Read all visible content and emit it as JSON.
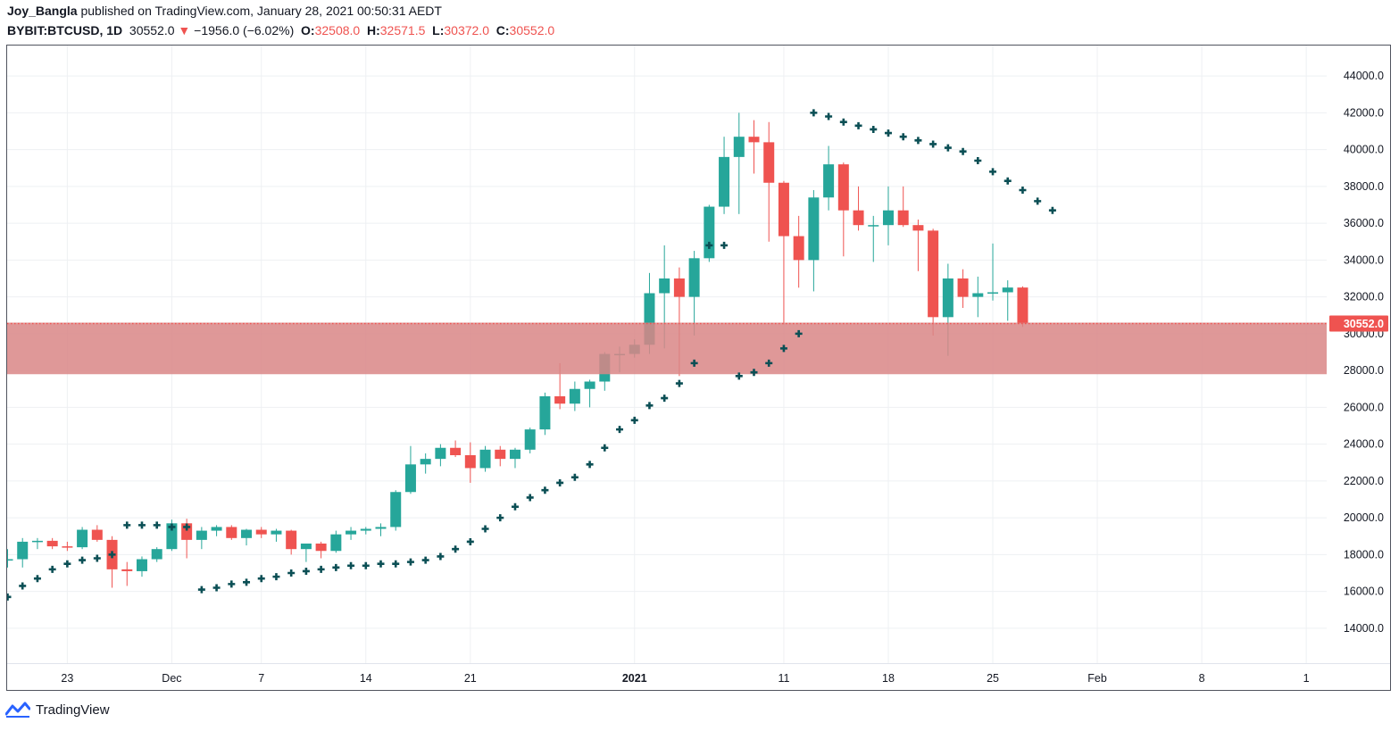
{
  "header": {
    "author": "Joy_Bangla",
    "published_text": "published on TradingView.com, January 28, 2021 00:50:31 AEDT",
    "symbol": "BYBIT:BTCUSD, 1D",
    "last": "30552.0",
    "change_arrow": "▼",
    "change": "−1956.0 (−6.02%)",
    "o_label": "O:",
    "o_value": "32508.0",
    "h_label": "H:",
    "h_value": "32571.5",
    "l_label": "L:",
    "l_value": "30372.0",
    "c_label": "C:",
    "c_value": "30552.0"
  },
  "footer": {
    "brand": "TradingView",
    "logo_icon": "tradingview-logo-icon"
  },
  "colors": {
    "up": "#26a69a",
    "down": "#ef5350",
    "sar": "#0b4f55",
    "zone": "#d98686",
    "grid": "#eef0f3",
    "axis_text": "#131722"
  },
  "chart_data": {
    "type": "candlestick",
    "ylim": [
      13000,
      45000
    ],
    "yticks": [
      14000,
      16000,
      18000,
      20000,
      22000,
      24000,
      26000,
      28000,
      30000,
      32000,
      34000,
      36000,
      38000,
      40000,
      42000,
      44000
    ],
    "ytick_labels": [
      "14000.0",
      "16000.0",
      "18000.0",
      "20000.0",
      "22000.0",
      "24000.0",
      "26000.0",
      "28000.0",
      "30000.0",
      "32000.0",
      "34000.0",
      "36000.0",
      "38000.0",
      "40000.0",
      "42000.0",
      "44000.0"
    ],
    "xticks": [
      {
        "index": 4,
        "label": "23",
        "bold": false
      },
      {
        "index": 11,
        "label": "Dec",
        "bold": false
      },
      {
        "index": 17,
        "label": "7",
        "bold": false
      },
      {
        "index": 24,
        "label": "14",
        "bold": false
      },
      {
        "index": 31,
        "label": "21",
        "bold": false
      },
      {
        "index": 42,
        "label": "2021",
        "bold": true
      },
      {
        "index": 52,
        "label": "11",
        "bold": false
      },
      {
        "index": 59,
        "label": "18",
        "bold": false
      },
      {
        "index": 66,
        "label": "25",
        "bold": false
      },
      {
        "index": 73,
        "label": "Feb",
        "bold": false
      },
      {
        "index": 80,
        "label": "8",
        "bold": false
      },
      {
        "index": 87,
        "label": "1",
        "bold": false
      }
    ],
    "last_price": 30552.0,
    "last_price_label": "30552.0",
    "zone": {
      "low": 27800,
      "high": 30600
    },
    "candles": [
      {
        "o": 17700,
        "h": 18300,
        "l": 17300,
        "c": 17750
      },
      {
        "o": 17750,
        "h": 18900,
        "l": 17300,
        "c": 18700
      },
      {
        "o": 18700,
        "h": 18900,
        "l": 18300,
        "c": 18750
      },
      {
        "o": 18750,
        "h": 18900,
        "l": 18300,
        "c": 18450
      },
      {
        "o": 18450,
        "h": 18700,
        "l": 18200,
        "c": 18400
      },
      {
        "o": 18400,
        "h": 19500,
        "l": 18300,
        "c": 19350
      },
      {
        "o": 19350,
        "h": 19600,
        "l": 18700,
        "c": 18800
      },
      {
        "o": 18800,
        "h": 19000,
        "l": 16200,
        "c": 17200
      },
      {
        "o": 17200,
        "h": 17600,
        "l": 16300,
        "c": 17100
      },
      {
        "o": 17100,
        "h": 17900,
        "l": 16800,
        "c": 17750
      },
      {
        "o": 17750,
        "h": 18400,
        "l": 17600,
        "c": 18300
      },
      {
        "o": 18300,
        "h": 19900,
        "l": 18200,
        "c": 19700
      },
      {
        "o": 19700,
        "h": 19950,
        "l": 17800,
        "c": 18800
      },
      {
        "o": 18800,
        "h": 19500,
        "l": 18300,
        "c": 19300
      },
      {
        "o": 19300,
        "h": 19600,
        "l": 19000,
        "c": 19500
      },
      {
        "o": 19500,
        "h": 19600,
        "l": 18800,
        "c": 18900
      },
      {
        "o": 18900,
        "h": 19400,
        "l": 18500,
        "c": 19350
      },
      {
        "o": 19350,
        "h": 19500,
        "l": 18900,
        "c": 19100
      },
      {
        "o": 19100,
        "h": 19400,
        "l": 18700,
        "c": 19300
      },
      {
        "o": 19300,
        "h": 19350,
        "l": 18000,
        "c": 18300
      },
      {
        "o": 18300,
        "h": 18600,
        "l": 17600,
        "c": 18600
      },
      {
        "o": 18600,
        "h": 18700,
        "l": 17800,
        "c": 18200
      },
      {
        "o": 18200,
        "h": 19300,
        "l": 18100,
        "c": 19100
      },
      {
        "o": 19100,
        "h": 19500,
        "l": 18800,
        "c": 19300
      },
      {
        "o": 19300,
        "h": 19500,
        "l": 19100,
        "c": 19400
      },
      {
        "o": 19400,
        "h": 19700,
        "l": 19000,
        "c": 19500
      },
      {
        "o": 19500,
        "h": 21500,
        "l": 19300,
        "c": 21400
      },
      {
        "o": 21400,
        "h": 23900,
        "l": 21300,
        "c": 22900
      },
      {
        "o": 22900,
        "h": 23500,
        "l": 22400,
        "c": 23200
      },
      {
        "o": 23200,
        "h": 24000,
        "l": 22800,
        "c": 23800
      },
      {
        "o": 23800,
        "h": 24200,
        "l": 23300,
        "c": 23400
      },
      {
        "o": 23400,
        "h": 24100,
        "l": 21900,
        "c": 22700
      },
      {
        "o": 22700,
        "h": 23900,
        "l": 22500,
        "c": 23700
      },
      {
        "o": 23700,
        "h": 23900,
        "l": 22800,
        "c": 23200
      },
      {
        "o": 23200,
        "h": 23800,
        "l": 22700,
        "c": 23700
      },
      {
        "o": 23700,
        "h": 24900,
        "l": 23500,
        "c": 24800
      },
      {
        "o": 24800,
        "h": 26800,
        "l": 24500,
        "c": 26600
      },
      {
        "o": 26600,
        "h": 28400,
        "l": 25900,
        "c": 26200
      },
      {
        "o": 26200,
        "h": 27400,
        "l": 25800,
        "c": 27000
      },
      {
        "o": 27000,
        "h": 27500,
        "l": 26000,
        "c": 27400
      },
      {
        "o": 27400,
        "h": 29000,
        "l": 26900,
        "c": 28900
      },
      {
        "o": 28900,
        "h": 29300,
        "l": 27900,
        "c": 28900
      },
      {
        "o": 28900,
        "h": 29700,
        "l": 28700,
        "c": 29400
      },
      {
        "o": 29400,
        "h": 33300,
        "l": 28900,
        "c": 32200
      },
      {
        "o": 32200,
        "h": 34800,
        "l": 29200,
        "c": 33000
      },
      {
        "o": 33000,
        "h": 33600,
        "l": 27700,
        "c": 32000
      },
      {
        "o": 32000,
        "h": 34500,
        "l": 29900,
        "c": 34100
      },
      {
        "o": 34100,
        "h": 37000,
        "l": 33900,
        "c": 36900
      },
      {
        "o": 36900,
        "h": 40700,
        "l": 36500,
        "c": 39600
      },
      {
        "o": 39600,
        "h": 42000,
        "l": 36500,
        "c": 40700
      },
      {
        "o": 40700,
        "h": 41600,
        "l": 38700,
        "c": 40400
      },
      {
        "o": 40400,
        "h": 41500,
        "l": 35000,
        "c": 38200
      },
      {
        "o": 38200,
        "h": 38300,
        "l": 30500,
        "c": 35300
      },
      {
        "o": 35300,
        "h": 36400,
        "l": 32500,
        "c": 34000
      },
      {
        "o": 34000,
        "h": 37800,
        "l": 32300,
        "c": 37400
      },
      {
        "o": 37400,
        "h": 40200,
        "l": 36700,
        "c": 39200
      },
      {
        "o": 39200,
        "h": 39300,
        "l": 34200,
        "c": 36700
      },
      {
        "o": 36700,
        "h": 38000,
        "l": 35600,
        "c": 35900
      },
      {
        "o": 35900,
        "h": 36400,
        "l": 33900,
        "c": 35900
      },
      {
        "o": 35900,
        "h": 38000,
        "l": 34800,
        "c": 36700
      },
      {
        "o": 36700,
        "h": 38000,
        "l": 35800,
        "c": 35900
      },
      {
        "o": 35900,
        "h": 36200,
        "l": 33400,
        "c": 35600
      },
      {
        "o": 35600,
        "h": 35700,
        "l": 29900,
        "c": 30900
      },
      {
        "o": 30900,
        "h": 33800,
        "l": 28800,
        "c": 33000
      },
      {
        "o": 33000,
        "h": 33500,
        "l": 31400,
        "c": 32000
      },
      {
        "o": 32000,
        "h": 33100,
        "l": 30900,
        "c": 32200
      },
      {
        "o": 32200,
        "h": 34900,
        "l": 31800,
        "c": 32250
      },
      {
        "o": 32250,
        "h": 32900,
        "l": 30700,
        "c": 32508
      },
      {
        "o": 32508,
        "h": 32571.5,
        "l": 30372,
        "c": 30552
      }
    ],
    "sar": [
      [
        0,
        15700
      ],
      [
        1,
        16300
      ],
      [
        2,
        16700
      ],
      [
        3,
        17200
      ],
      [
        4,
        17500
      ],
      [
        5,
        17700
      ],
      [
        6,
        17800
      ],
      [
        7,
        18000
      ],
      [
        8,
        19600
      ],
      [
        9,
        19600
      ],
      [
        10,
        19600
      ],
      [
        11,
        19500
      ],
      [
        12,
        19500
      ],
      [
        13,
        16100
      ],
      [
        14,
        16200
      ],
      [
        15,
        16400
      ],
      [
        16,
        16500
      ],
      [
        17,
        16700
      ],
      [
        18,
        16800
      ],
      [
        19,
        17000
      ],
      [
        20,
        17100
      ],
      [
        21,
        17200
      ],
      [
        22,
        17300
      ],
      [
        23,
        17400
      ],
      [
        24,
        17400
      ],
      [
        25,
        17500
      ],
      [
        26,
        17500
      ],
      [
        27,
        17600
      ],
      [
        28,
        17700
      ],
      [
        29,
        17900
      ],
      [
        30,
        18300
      ],
      [
        31,
        18700
      ],
      [
        32,
        19400
      ],
      [
        33,
        20000
      ],
      [
        34,
        20600
      ],
      [
        35,
        21100
      ],
      [
        36,
        21500
      ],
      [
        37,
        21900
      ],
      [
        38,
        22200
      ],
      [
        39,
        22900
      ],
      [
        40,
        23800
      ],
      [
        41,
        24800
      ],
      [
        42,
        25300
      ],
      [
        43,
        26100
      ],
      [
        44,
        26500
      ],
      [
        45,
        27300
      ],
      [
        46,
        28400
      ],
      [
        47,
        34800
      ],
      [
        48,
        34800
      ],
      [
        49,
        27700
      ],
      [
        50,
        27900
      ],
      [
        51,
        28400
      ],
      [
        52,
        29200
      ],
      [
        53,
        30000
      ],
      [
        54,
        42000
      ],
      [
        55,
        41800
      ],
      [
        56,
        41500
      ],
      [
        57,
        41300
      ],
      [
        58,
        41100
      ],
      [
        59,
        40900
      ],
      [
        60,
        40700
      ],
      [
        61,
        40500
      ],
      [
        62,
        40300
      ],
      [
        63,
        40100
      ],
      [
        64,
        39900
      ],
      [
        65,
        39400
      ],
      [
        66,
        38800
      ],
      [
        67,
        38300
      ],
      [
        68,
        37800
      ],
      [
        69,
        37200
      ],
      [
        70,
        36700
      ]
    ]
  }
}
